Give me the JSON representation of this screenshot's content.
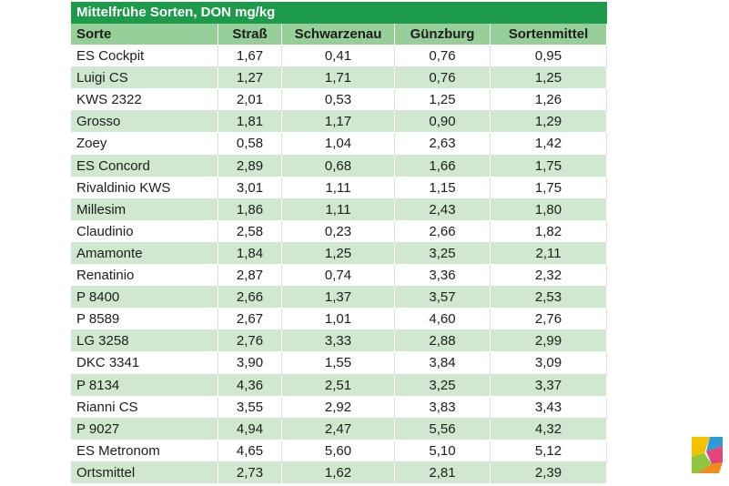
{
  "table": {
    "title": "Mittelfrühe Sorten, DON mg/kg",
    "headers": [
      "Sorte",
      "Straß",
      "Schwarzenau",
      "Günzburg",
      "Sortenmittel"
    ],
    "rows": [
      [
        "ES Cockpit",
        "1,67",
        "0,41",
        "0,76",
        "0,95"
      ],
      [
        "Luigi CS",
        "1,27",
        "1,71",
        "0,76",
        "1,25"
      ],
      [
        "KWS 2322",
        "2,01",
        "0,53",
        "1,25",
        "1,26"
      ],
      [
        "Grosso",
        "1,81",
        "1,17",
        "0,90",
        "1,29"
      ],
      [
        "Zoey",
        "0,58",
        "1,04",
        "2,63",
        "1,42"
      ],
      [
        "ES Concord",
        "2,89",
        "0,68",
        "1,66",
        "1,75"
      ],
      [
        "Rivaldinio KWS",
        "3,01",
        "1,11",
        "1,15",
        "1,75"
      ],
      [
        "Millesim",
        "1,86",
        "1,11",
        "2,43",
        "1,80"
      ],
      [
        "Claudinio",
        "2,58",
        "0,23",
        "2,66",
        "1,82"
      ],
      [
        "Amamonte",
        "1,84",
        "1,25",
        "3,25",
        "2,11"
      ],
      [
        "Renatinio",
        "2,87",
        "0,74",
        "3,36",
        "2,32"
      ],
      [
        "P 8400",
        "2,66",
        "1,37",
        "3,57",
        "2,53"
      ],
      [
        "P 8589",
        "2,67",
        "1,01",
        "4,60",
        "2,76"
      ],
      [
        "LG 3258",
        "2,76",
        "3,33",
        "2,88",
        "2,99"
      ],
      [
        "DKC 3341",
        "3,90",
        "1,55",
        "3,84",
        "3,09"
      ],
      [
        "P 8134",
        "4,36",
        "2,51",
        "3,25",
        "3,37"
      ],
      [
        "Rianni CS",
        "3,55",
        "2,92",
        "3,83",
        "3,43"
      ],
      [
        "P 9027",
        "4,94",
        "2,47",
        "5,56",
        "4,32"
      ],
      [
        "ES Metronom",
        "4,65",
        "5,60",
        "5,10",
        "5,12"
      ],
      [
        "Ortsmittel",
        "2,73",
        "1,62",
        "2,81",
        "2,39"
      ]
    ]
  },
  "colors": {
    "title_bg": "#1e9a4b",
    "header_bg": "#97cf98",
    "stripe_bg": "#cfe8cf"
  },
  "logo": {
    "icon": "publisher-logo-icon"
  }
}
